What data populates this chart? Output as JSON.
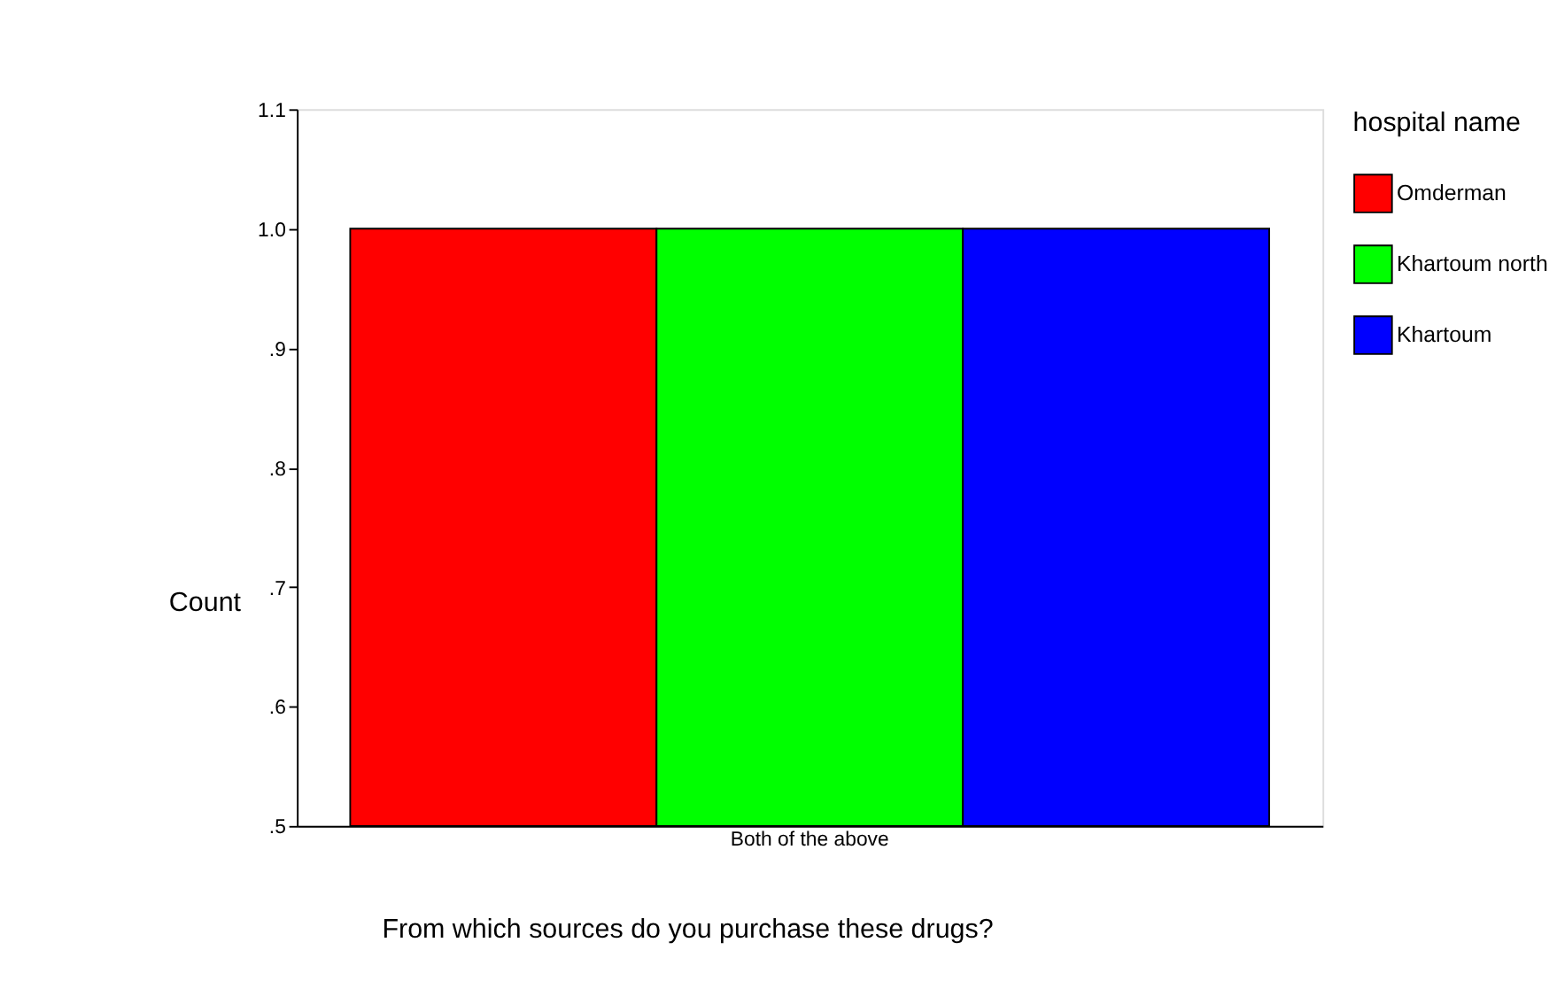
{
  "chart_data": {
    "type": "bar",
    "xlabel": "From which sources do you purchase these drugs?",
    "ylabel": "Count",
    "legend_title": "hospital name",
    "categories": [
      "Both of the above"
    ],
    "series": [
      {
        "name": "Omderman",
        "color": "#ff0000",
        "values": [
          1.0
        ]
      },
      {
        "name": "Khartoum north",
        "color": "#00ff00",
        "values": [
          1.0
        ]
      },
      {
        "name": "Khartoum",
        "color": "#0000ff",
        "values": [
          1.0
        ]
      }
    ],
    "ylim": [
      0.5,
      1.1
    ],
    "yticks": [
      {
        "value": 0.5,
        "label": ".5"
      },
      {
        "value": 0.6,
        "label": ".6"
      },
      {
        "value": 0.7,
        "label": ".7"
      },
      {
        "value": 0.8,
        "label": ".8"
      },
      {
        "value": 0.9,
        "label": ".9"
      },
      {
        "value": 1.0,
        "label": "1.0"
      },
      {
        "value": 1.1,
        "label": "1.1"
      }
    ],
    "grid": false,
    "legend": "right"
  }
}
